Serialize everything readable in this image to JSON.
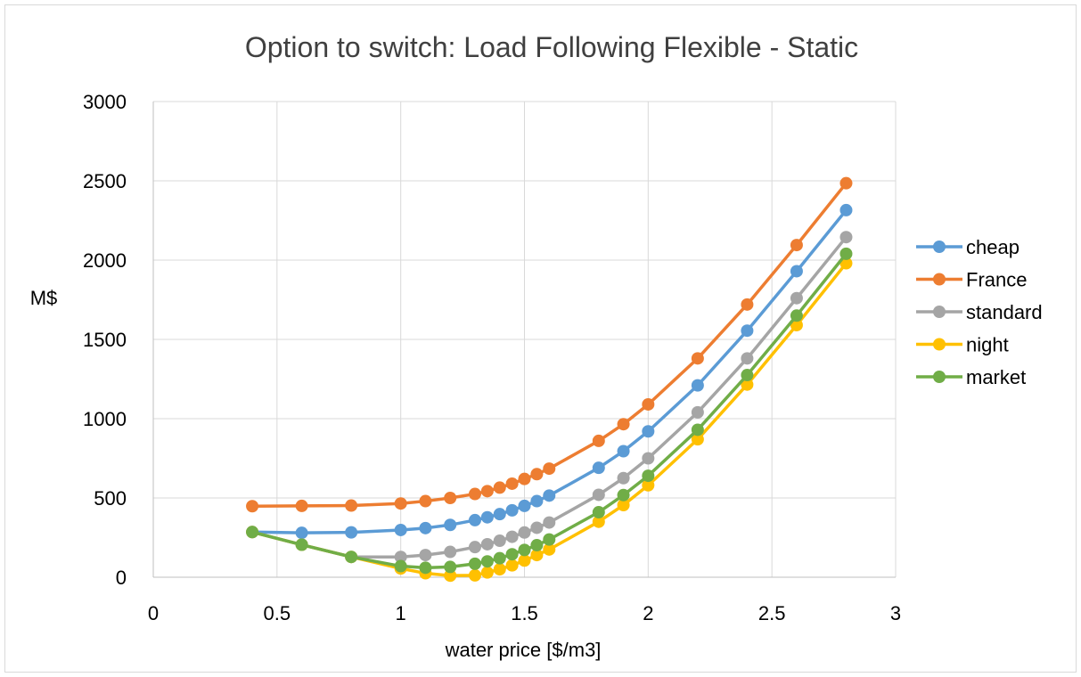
{
  "chart_data": {
    "type": "line",
    "title": "Option to switch: Load Following Flexible - Static",
    "xlabel": "water price [$/m3]",
    "ylabel": "M$",
    "xlim": [
      0,
      3
    ],
    "ylim": [
      0,
      3000
    ],
    "xticks": [
      "0",
      "0.5",
      "1",
      "1.5",
      "2",
      "2.5",
      "3"
    ],
    "yticks": [
      "0",
      "500",
      "1000",
      "1500",
      "2000",
      "2500",
      "3000"
    ],
    "grid": true,
    "legend_position": "right",
    "x": [
      0.4,
      0.6,
      0.8,
      1.0,
      1.1,
      1.2,
      1.3,
      1.35,
      1.4,
      1.45,
      1.5,
      1.55,
      1.6,
      1.8,
      1.9,
      2.0,
      2.2,
      2.4,
      2.6,
      2.8
    ],
    "series": [
      {
        "name": "cheap",
        "color": "#5b9bd5",
        "values": [
          285,
          280,
          283,
          298,
          310,
          330,
          360,
          378,
          398,
          422,
          450,
          480,
          515,
          690,
          795,
          920,
          1210,
          1555,
          1930,
          2315
        ]
      },
      {
        "name": "France",
        "color": "#ed7d31",
        "values": [
          448,
          450,
          452,
          465,
          480,
          500,
          525,
          543,
          565,
          590,
          620,
          650,
          685,
          860,
          965,
          1090,
          1380,
          1720,
          2095,
          2485
        ]
      },
      {
        "name": "standard",
        "color": "#a5a5a5",
        "values": [
          285,
          205,
          128,
          128,
          140,
          160,
          190,
          208,
          230,
          255,
          282,
          312,
          345,
          520,
          625,
          750,
          1040,
          1380,
          1760,
          2145
        ]
      },
      {
        "name": "night",
        "color": "#ffc000",
        "values": [
          285,
          205,
          128,
          55,
          25,
          10,
          12,
          30,
          50,
          75,
          105,
          140,
          175,
          350,
          455,
          580,
          870,
          1215,
          1590,
          1980
        ]
      },
      {
        "name": "market",
        "color": "#70ad47",
        "values": [
          285,
          205,
          128,
          70,
          60,
          65,
          85,
          100,
          120,
          145,
          172,
          202,
          238,
          410,
          518,
          640,
          930,
          1275,
          1650,
          2040
        ]
      }
    ]
  }
}
